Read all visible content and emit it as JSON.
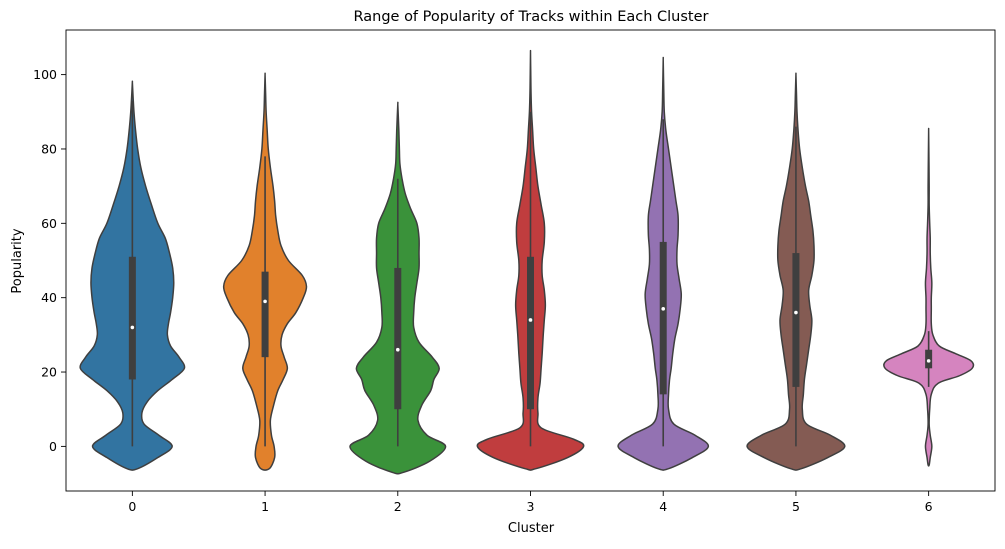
{
  "chart_data": {
    "type": "violin",
    "title": "Range of Popularity of Tracks within Each Cluster",
    "xlabel": "Cluster",
    "ylabel": "Popularity",
    "categories": [
      "0",
      "1",
      "2",
      "3",
      "4",
      "5",
      "6"
    ],
    "ylim": [
      -12,
      112
    ],
    "yticks": [
      0,
      20,
      40,
      60,
      80,
      100
    ],
    "grid": false,
    "series": [
      {
        "category": "0",
        "color": "#3274a1",
        "min": -6,
        "max": 98,
        "whisker_low": 0,
        "q1": 18,
        "median": 32,
        "q3": 51,
        "whisker_high": 93,
        "density": [
          [
            -6,
            0.1
          ],
          [
            -3,
            0.48
          ],
          [
            0,
            0.75
          ],
          [
            3,
            0.5
          ],
          [
            6,
            0.22
          ],
          [
            9,
            0.18
          ],
          [
            12,
            0.28
          ],
          [
            15,
            0.48
          ],
          [
            18,
            0.75
          ],
          [
            21,
            0.98
          ],
          [
            24,
            0.88
          ],
          [
            27,
            0.72
          ],
          [
            30,
            0.66
          ],
          [
            33,
            0.68
          ],
          [
            36,
            0.72
          ],
          [
            40,
            0.76
          ],
          [
            44,
            0.78
          ],
          [
            48,
            0.76
          ],
          [
            52,
            0.7
          ],
          [
            56,
            0.62
          ],
          [
            60,
            0.48
          ],
          [
            65,
            0.36
          ],
          [
            70,
            0.25
          ],
          [
            75,
            0.16
          ],
          [
            80,
            0.1
          ],
          [
            85,
            0.06
          ],
          [
            90,
            0.03
          ],
          [
            95,
            0.01
          ],
          [
            98,
            0.0
          ]
        ]
      },
      {
        "category": "1",
        "color": "#e1812c",
        "min": -6,
        "max": 100,
        "whisker_low": 0,
        "q1": 24,
        "median": 39,
        "q3": 47,
        "whisker_high": 78,
        "density": [
          [
            -6,
            0.08
          ],
          [
            -3,
            0.18
          ],
          [
            0,
            0.17
          ],
          [
            3,
            0.12
          ],
          [
            7,
            0.1
          ],
          [
            11,
            0.16
          ],
          [
            15,
            0.24
          ],
          [
            18,
            0.34
          ],
          [
            21,
            0.42
          ],
          [
            24,
            0.36
          ],
          [
            27,
            0.3
          ],
          [
            30,
            0.32
          ],
          [
            33,
            0.42
          ],
          [
            36,
            0.58
          ],
          [
            40,
            0.72
          ],
          [
            43,
            0.78
          ],
          [
            46,
            0.7
          ],
          [
            50,
            0.44
          ],
          [
            54,
            0.3
          ],
          [
            58,
            0.24
          ],
          [
            62,
            0.2
          ],
          [
            66,
            0.18
          ],
          [
            70,
            0.15
          ],
          [
            75,
            0.1
          ],
          [
            80,
            0.06
          ],
          [
            85,
            0.04
          ],
          [
            90,
            0.02
          ],
          [
            95,
            0.01
          ],
          [
            100,
            0.0
          ]
        ]
      },
      {
        "category": "2",
        "color": "#3a923a",
        "min": -7,
        "max": 92,
        "whisker_low": 0,
        "q1": 10,
        "median": 26,
        "q3": 48,
        "whisker_high": 72,
        "density": [
          [
            -7,
            0.1
          ],
          [
            -4,
            0.6
          ],
          [
            0,
            0.9
          ],
          [
            3,
            0.55
          ],
          [
            7,
            0.38
          ],
          [
            11,
            0.45
          ],
          [
            15,
            0.62
          ],
          [
            18,
            0.68
          ],
          [
            21,
            0.78
          ],
          [
            24,
            0.65
          ],
          [
            28,
            0.4
          ],
          [
            32,
            0.3
          ],
          [
            36,
            0.3
          ],
          [
            40,
            0.32
          ],
          [
            44,
            0.36
          ],
          [
            48,
            0.4
          ],
          [
            52,
            0.4
          ],
          [
            56,
            0.4
          ],
          [
            60,
            0.36
          ],
          [
            64,
            0.24
          ],
          [
            68,
            0.14
          ],
          [
            72,
            0.08
          ],
          [
            76,
            0.04
          ],
          [
            80,
            0.03
          ],
          [
            85,
            0.02
          ],
          [
            92,
            0.0
          ]
        ]
      },
      {
        "category": "3",
        "color": "#c03d3e",
        "min": -6,
        "max": 106,
        "whisker_low": 0,
        "q1": 10,
        "median": 34,
        "q3": 51,
        "whisker_high": 90,
        "density": [
          [
            -6,
            0.1
          ],
          [
            -3,
            0.7
          ],
          [
            0,
            1.0
          ],
          [
            2,
            0.8
          ],
          [
            5,
            0.2
          ],
          [
            9,
            0.14
          ],
          [
            13,
            0.14
          ],
          [
            17,
            0.18
          ],
          [
            21,
            0.2
          ],
          [
            25,
            0.22
          ],
          [
            30,
            0.24
          ],
          [
            34,
            0.26
          ],
          [
            38,
            0.28
          ],
          [
            42,
            0.26
          ],
          [
            46,
            0.22
          ],
          [
            50,
            0.22
          ],
          [
            55,
            0.26
          ],
          [
            60,
            0.26
          ],
          [
            65,
            0.2
          ],
          [
            70,
            0.14
          ],
          [
            75,
            0.1
          ],
          [
            80,
            0.06
          ],
          [
            85,
            0.04
          ],
          [
            90,
            0.02
          ],
          [
            95,
            0.01
          ],
          [
            100,
            0.005
          ],
          [
            106,
            0.0
          ]
        ]
      },
      {
        "category": "4",
        "color": "#9372b2",
        "min": -6,
        "max": 104,
        "whisker_low": 0,
        "q1": 14,
        "median": 37,
        "q3": 55,
        "whisker_high": 88,
        "density": [
          [
            -6,
            0.1
          ],
          [
            -3,
            0.55
          ],
          [
            0,
            0.85
          ],
          [
            3,
            0.6
          ],
          [
            6,
            0.2
          ],
          [
            10,
            0.1
          ],
          [
            14,
            0.1
          ],
          [
            18,
            0.12
          ],
          [
            21,
            0.15
          ],
          [
            25,
            0.18
          ],
          [
            29,
            0.22
          ],
          [
            33,
            0.28
          ],
          [
            37,
            0.32
          ],
          [
            41,
            0.34
          ],
          [
            45,
            0.3
          ],
          [
            49,
            0.26
          ],
          [
            53,
            0.26
          ],
          [
            57,
            0.28
          ],
          [
            62,
            0.28
          ],
          [
            66,
            0.24
          ],
          [
            70,
            0.2
          ],
          [
            75,
            0.15
          ],
          [
            80,
            0.1
          ],
          [
            85,
            0.05
          ],
          [
            90,
            0.02
          ],
          [
            96,
            0.01
          ],
          [
            104,
            0.0
          ]
        ]
      },
      {
        "category": "5",
        "color": "#845b53",
        "min": -6,
        "max": 100,
        "whisker_low": 0,
        "q1": 16,
        "median": 36,
        "q3": 52,
        "whisker_high": 86,
        "density": [
          [
            -6,
            0.1
          ],
          [
            -3,
            0.6
          ],
          [
            0,
            0.92
          ],
          [
            3,
            0.65
          ],
          [
            6,
            0.2
          ],
          [
            10,
            0.12
          ],
          [
            14,
            0.14
          ],
          [
            18,
            0.16
          ],
          [
            22,
            0.2
          ],
          [
            26,
            0.24
          ],
          [
            30,
            0.28
          ],
          [
            34,
            0.3
          ],
          [
            38,
            0.26
          ],
          [
            42,
            0.24
          ],
          [
            46,
            0.3
          ],
          [
            50,
            0.34
          ],
          [
            54,
            0.34
          ],
          [
            58,
            0.32
          ],
          [
            62,
            0.28
          ],
          [
            66,
            0.24
          ],
          [
            70,
            0.18
          ],
          [
            75,
            0.12
          ],
          [
            80,
            0.07
          ],
          [
            85,
            0.04
          ],
          [
            90,
            0.02
          ],
          [
            95,
            0.01
          ],
          [
            100,
            0.0
          ]
        ]
      },
      {
        "category": "6",
        "color": "#d584bf",
        "min": -5,
        "max": 85,
        "whisker_low": 16,
        "q1": 21,
        "median": 23,
        "q3": 26,
        "whisker_high": 31,
        "density": [
          [
            -5,
            0.01
          ],
          [
            -3,
            0.03
          ],
          [
            0,
            0.06
          ],
          [
            3,
            0.03
          ],
          [
            6,
            0.01
          ],
          [
            10,
            0.02
          ],
          [
            14,
            0.05
          ],
          [
            17,
            0.18
          ],
          [
            19,
            0.58
          ],
          [
            21,
            0.82
          ],
          [
            23,
            0.8
          ],
          [
            25,
            0.5
          ],
          [
            27,
            0.2
          ],
          [
            30,
            0.08
          ],
          [
            33,
            0.05
          ],
          [
            37,
            0.05
          ],
          [
            40,
            0.05
          ],
          [
            44,
            0.06
          ],
          [
            48,
            0.04
          ],
          [
            52,
            0.03
          ],
          [
            56,
            0.03
          ],
          [
            60,
            0.02
          ],
          [
            65,
            0.01
          ],
          [
            70,
            0.01
          ],
          [
            78,
            0.005
          ],
          [
            85,
            0.0
          ]
        ]
      }
    ]
  }
}
